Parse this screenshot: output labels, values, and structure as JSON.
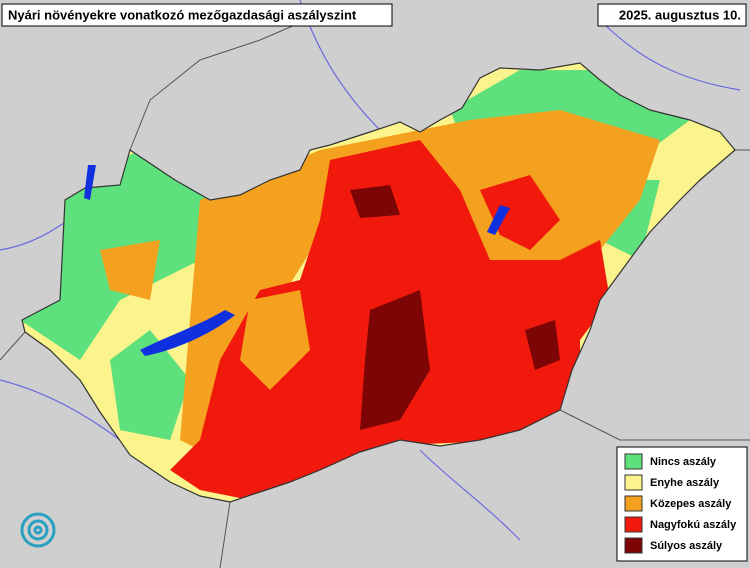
{
  "header": {
    "title": "Nyári növényekre vonatkozó mezőgazdasági aszályszint",
    "date": "2025. augusztus 10."
  },
  "legend": {
    "items": [
      {
        "label": "Nincs aszály",
        "color": "#5ee07c"
      },
      {
        "label": "Enyhe aszály",
        "color": "#fbf38c"
      },
      {
        "label": "Közepes aszály",
        "color": "#f4a11f"
      },
      {
        "label": "Nagyfokú aszály",
        "color": "#f0190c"
      },
      {
        "label": "Súlyos aszály",
        "color": "#7e0505"
      }
    ]
  }
}
